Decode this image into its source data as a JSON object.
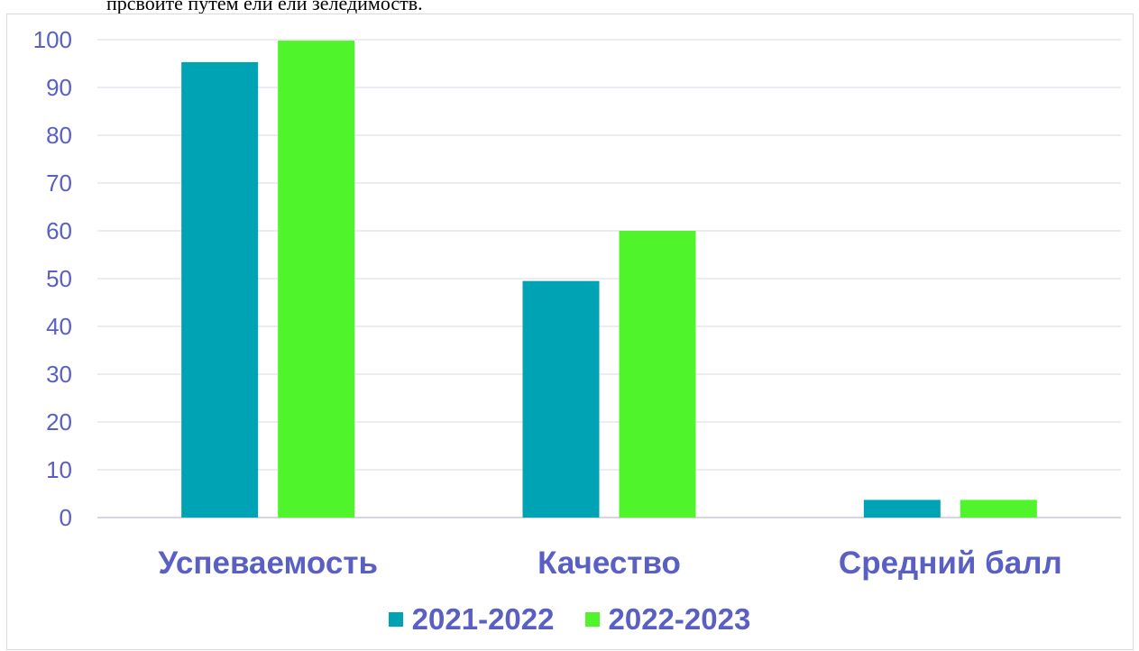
{
  "top_text": "прсвойте путем ели ели зеледимоств.",
  "colors": {
    "axis_text": "#5a5fc4",
    "grid": "#d9d9e6",
    "axis_line": "#c8c8d8",
    "series_2021": "#00a3b4",
    "series_2022": "#4ff52a"
  },
  "chart_data": {
    "type": "bar",
    "categories": [
      "Успеваемость",
      "Качество",
      "Средний балл"
    ],
    "series": [
      {
        "name": "2021-2022",
        "values": [
          95.3,
          49.5,
          3.7
        ]
      },
      {
        "name": "2022-2023",
        "values": [
          99.8,
          60.0,
          3.7
        ]
      }
    ],
    "ylim": [
      0,
      100
    ],
    "yticks": [
      "0",
      "10",
      "20",
      "30",
      "40",
      "50",
      "60",
      "70",
      "80",
      "90",
      "100"
    ],
    "grid": true,
    "legend": "bottom"
  }
}
